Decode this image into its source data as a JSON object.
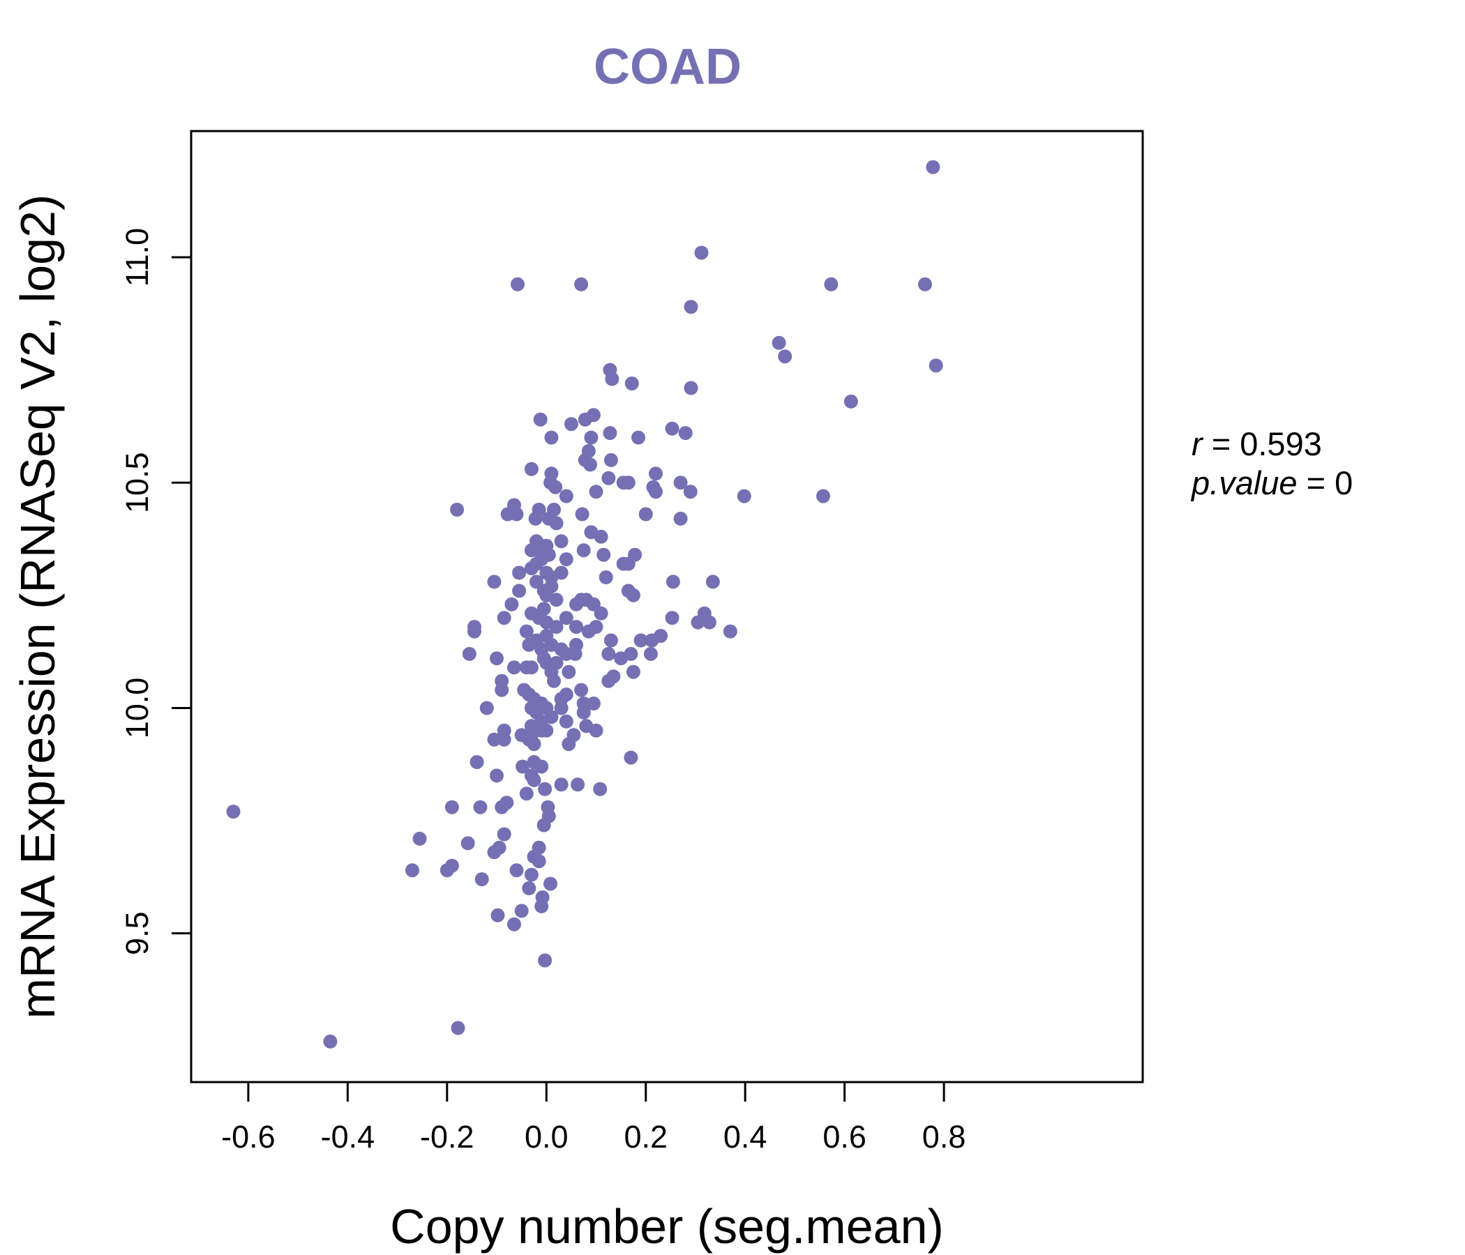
{
  "chart_data": {
    "type": "scatter",
    "title": "COAD",
    "xlabel": "Copy number (seg.mean)",
    "ylabel": "mRNA Expression (RNASeq V2, log2)",
    "xlim": [
      -0.715,
      1.2
    ],
    "ylim": [
      9.17,
      11.28
    ],
    "x_ticks": [
      -0.6,
      -0.4,
      -0.2,
      0.0,
      0.2,
      0.4,
      0.6,
      0.8
    ],
    "x_tick_labels": [
      "-0.6",
      "-0.4",
      "-0.2",
      "0.0",
      "0.2",
      "0.4",
      "0.6",
      "0.8"
    ],
    "y_ticks": [
      9.5,
      10.0,
      10.5,
      11.0
    ],
    "y_tick_labels": [
      "9.5",
      "10.0",
      "10.5",
      "11.0"
    ],
    "grid": false,
    "legend": null,
    "point_color": "#7570b3",
    "stats": {
      "r_symbol": "r",
      "r_value": "0.593",
      "p_symbol": "p.value",
      "p_value": "0"
    },
    "points": [
      [
        0.778,
        11.2
      ],
      [
        0.312,
        11.01
      ],
      [
        -0.058,
        10.94
      ],
      [
        0.07,
        10.94
      ],
      [
        0.573,
        10.94
      ],
      [
        0.762,
        10.94
      ],
      [
        0.291,
        10.89
      ],
      [
        0.468,
        10.81
      ],
      [
        0.48,
        10.78
      ],
      [
        0.784,
        10.76
      ],
      [
        0.128,
        10.75
      ],
      [
        0.132,
        10.73
      ],
      [
        0.172,
        10.72
      ],
      [
        0.291,
        10.71
      ],
      [
        0.613,
        10.68
      ],
      [
        0.095,
        10.65
      ],
      [
        -0.012,
        10.64
      ],
      [
        0.078,
        10.64
      ],
      [
        0.05,
        10.63
      ],
      [
        0.253,
        10.62
      ],
      [
        0.128,
        10.61
      ],
      [
        0.28,
        10.61
      ],
      [
        0.01,
        10.6
      ],
      [
        0.09,
        10.6
      ],
      [
        0.185,
        10.6
      ],
      [
        0.085,
        10.57
      ],
      [
        0.078,
        10.55
      ],
      [
        0.13,
        10.55
      ],
      [
        0.088,
        10.54
      ],
      [
        -0.03,
        10.53
      ],
      [
        0.22,
        10.52
      ],
      [
        0.01,
        10.52
      ],
      [
        0.125,
        10.51
      ],
      [
        0.155,
        10.5
      ],
      [
        0.165,
        10.5
      ],
      [
        0.27,
        10.5
      ],
      [
        0.008,
        10.5
      ],
      [
        0.018,
        10.49
      ],
      [
        0.215,
        10.49
      ],
      [
        0.22,
        10.48
      ],
      [
        0.1,
        10.48
      ],
      [
        0.29,
        10.48
      ],
      [
        0.398,
        10.47
      ],
      [
        0.557,
        10.47
      ],
      [
        0.04,
        10.47
      ],
      [
        -0.18,
        10.44
      ],
      [
        -0.078,
        10.43
      ],
      [
        -0.065,
        10.45
      ],
      [
        -0.06,
        10.43
      ],
      [
        -0.015,
        10.44
      ],
      [
        0.015,
        10.44
      ],
      [
        0.072,
        10.43
      ],
      [
        0.2,
        10.43
      ],
      [
        0.27,
        10.42
      ],
      [
        -0.022,
        10.42
      ],
      [
        0.005,
        10.42
      ],
      [
        0.02,
        10.41
      ],
      [
        0.09,
        10.39
      ],
      [
        0.03,
        10.37
      ],
      [
        0.11,
        10.38
      ],
      [
        -0.02,
        10.37
      ],
      [
        -0.01,
        10.36
      ],
      [
        0.0,
        10.36
      ],
      [
        -0.03,
        10.35
      ],
      [
        -0.018,
        10.35
      ],
      [
        0.005,
        10.34
      ],
      [
        0.075,
        10.35
      ],
      [
        0.115,
        10.34
      ],
      [
        0.178,
        10.34
      ],
      [
        -0.01,
        10.33
      ],
      [
        0.04,
        10.33
      ],
      [
        0.155,
        10.32
      ],
      [
        0.165,
        10.32
      ],
      [
        -0.02,
        10.32
      ],
      [
        -0.03,
        10.31
      ],
      [
        0.0,
        10.3
      ],
      [
        -0.055,
        10.3
      ],
      [
        0.03,
        10.3
      ],
      [
        0.01,
        10.29
      ],
      [
        0.12,
        10.29
      ],
      [
        0.255,
        10.28
      ],
      [
        0.335,
        10.28
      ],
      [
        -0.105,
        10.28
      ],
      [
        -0.02,
        10.28
      ],
      [
        0.01,
        10.27
      ],
      [
        -0.005,
        10.26
      ],
      [
        -0.055,
        10.26
      ],
      [
        0.165,
        10.26
      ],
      [
        0.175,
        10.25
      ],
      [
        0.0,
        10.25
      ],
      [
        0.02,
        10.24
      ],
      [
        0.08,
        10.24
      ],
      [
        0.07,
        10.24
      ],
      [
        -0.07,
        10.23
      ],
      [
        0.095,
        10.23
      ],
      [
        0.06,
        10.23
      ],
      [
        -0.005,
        10.22
      ],
      [
        -0.03,
        10.21
      ],
      [
        0.11,
        10.21
      ],
      [
        0.318,
        10.21
      ],
      [
        -0.015,
        10.2
      ],
      [
        0.04,
        10.2
      ],
      [
        -0.085,
        10.2
      ],
      [
        0.253,
        10.2
      ],
      [
        0.305,
        10.19
      ],
      [
        0.328,
        10.19
      ],
      [
        0.0,
        10.19
      ],
      [
        0.06,
        10.18
      ],
      [
        0.1,
        10.18
      ],
      [
        0.02,
        10.18
      ],
      [
        -0.145,
        10.18
      ],
      [
        -0.145,
        10.17
      ],
      [
        -0.04,
        10.17
      ],
      [
        0.37,
        10.17
      ],
      [
        0.085,
        10.17
      ],
      [
        0.0,
        10.16
      ],
      [
        0.23,
        10.16
      ],
      [
        0.212,
        10.15
      ],
      [
        0.13,
        10.15
      ],
      [
        0.19,
        10.15
      ],
      [
        -0.02,
        10.15
      ],
      [
        0.01,
        10.14
      ],
      [
        -0.035,
        10.14
      ],
      [
        0.06,
        10.14
      ],
      [
        -0.01,
        10.13
      ],
      [
        0.03,
        10.13
      ],
      [
        0.04,
        10.12
      ],
      [
        0.058,
        10.12
      ],
      [
        -0.155,
        10.12
      ],
      [
        0.17,
        10.12
      ],
      [
        0.125,
        10.12
      ],
      [
        0.21,
        10.12
      ],
      [
        0.15,
        10.11
      ],
      [
        -0.1,
        10.11
      ],
      [
        -0.005,
        10.11
      ],
      [
        0.02,
        10.1
      ],
      [
        0.0,
        10.1
      ],
      [
        -0.04,
        10.09
      ],
      [
        -0.065,
        10.09
      ],
      [
        -0.03,
        10.09
      ],
      [
        0.01,
        10.08
      ],
      [
        0.045,
        10.08
      ],
      [
        0.175,
        10.08
      ],
      [
        0.135,
        10.07
      ],
      [
        0.125,
        10.06
      ],
      [
        -0.09,
        10.06
      ],
      [
        0.015,
        10.06
      ],
      [
        -0.09,
        10.04
      ],
      [
        0.07,
        10.04
      ],
      [
        -0.045,
        10.04
      ],
      [
        -0.035,
        10.03
      ],
      [
        0.04,
        10.03
      ],
      [
        0.03,
        10.02
      ],
      [
        -0.025,
        10.02
      ],
      [
        -0.01,
        10.01
      ],
      [
        0.075,
        10.01
      ],
      [
        0.095,
        10.01
      ],
      [
        -0.03,
        10.0
      ],
      [
        0.03,
        10.0
      ],
      [
        -0.12,
        10.0
      ],
      [
        0.0,
        10.0
      ],
      [
        -0.02,
        9.99
      ],
      [
        0.075,
        9.99
      ],
      [
        0.01,
        9.98
      ],
      [
        0.04,
        9.97
      ],
      [
        -0.01,
        9.97
      ],
      [
        -0.03,
        9.96
      ],
      [
        0.08,
        9.96
      ],
      [
        0.1,
        9.95
      ],
      [
        -0.01,
        9.95
      ],
      [
        -0.085,
        9.95
      ],
      [
        0.0,
        9.95
      ],
      [
        -0.03,
        9.94
      ],
      [
        -0.05,
        9.94
      ],
      [
        0.055,
        9.94
      ],
      [
        -0.105,
        9.93
      ],
      [
        -0.085,
        9.93
      ],
      [
        -0.035,
        9.93
      ],
      [
        0.045,
        9.92
      ],
      [
        -0.025,
        9.92
      ],
      [
        -0.14,
        9.88
      ],
      [
        0.17,
        9.89
      ],
      [
        -0.025,
        9.88
      ],
      [
        -0.048,
        9.87
      ],
      [
        -0.01,
        9.87
      ],
      [
        -0.1,
        9.85
      ],
      [
        -0.03,
        9.85
      ],
      [
        -0.025,
        9.84
      ],
      [
        0.03,
        9.83
      ],
      [
        0.063,
        9.83
      ],
      [
        0.108,
        9.82
      ],
      [
        -0.003,
        9.82
      ],
      [
        -0.04,
        9.81
      ],
      [
        -0.08,
        9.79
      ],
      [
        -0.19,
        9.78
      ],
      [
        -0.133,
        9.78
      ],
      [
        -0.09,
        9.78
      ],
      [
        0.003,
        9.78
      ],
      [
        -0.63,
        9.77
      ],
      [
        0.005,
        9.76
      ],
      [
        -0.005,
        9.74
      ],
      [
        -0.085,
        9.72
      ],
      [
        -0.255,
        9.71
      ],
      [
        -0.158,
        9.7
      ],
      [
        -0.095,
        9.69
      ],
      [
        -0.105,
        9.68
      ],
      [
        -0.015,
        9.69
      ],
      [
        -0.025,
        9.67
      ],
      [
        -0.015,
        9.66
      ],
      [
        -0.27,
        9.64
      ],
      [
        -0.19,
        9.65
      ],
      [
        -0.2,
        9.64
      ],
      [
        -0.06,
        9.64
      ],
      [
        -0.03,
        9.63
      ],
      [
        -0.13,
        9.62
      ],
      [
        0.008,
        9.61
      ],
      [
        -0.035,
        9.6
      ],
      [
        -0.008,
        9.58
      ],
      [
        -0.01,
        9.56
      ],
      [
        -0.05,
        9.55
      ],
      [
        -0.098,
        9.54
      ],
      [
        -0.065,
        9.52
      ],
      [
        -0.003,
        9.44
      ],
      [
        -0.178,
        9.29
      ],
      [
        -0.435,
        9.26
      ]
    ]
  }
}
